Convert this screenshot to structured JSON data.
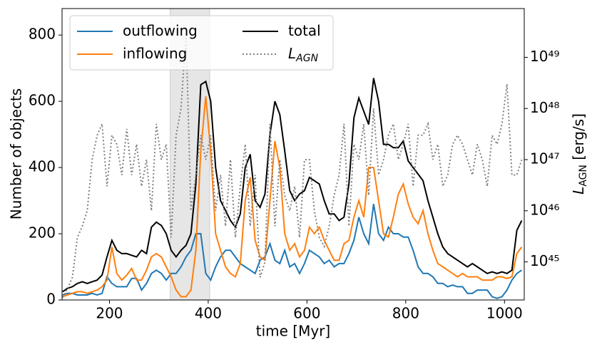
{
  "chart_data": {
    "type": "line",
    "xlabel": "time [Myr]",
    "ylabel": "Number of objects",
    "y2label": [
      "L",
      "AGN",
      " [erg/s]"
    ],
    "x": [
      105,
      115,
      125,
      135,
      145,
      155,
      165,
      175,
      185,
      195,
      205,
      215,
      225,
      235,
      245,
      255,
      265,
      275,
      285,
      295,
      305,
      315,
      325,
      335,
      345,
      355,
      365,
      375,
      385,
      395,
      405,
      415,
      425,
      435,
      445,
      455,
      465,
      475,
      485,
      495,
      505,
      515,
      525,
      535,
      545,
      555,
      565,
      575,
      585,
      595,
      605,
      615,
      625,
      635,
      645,
      655,
      665,
      675,
      685,
      695,
      705,
      715,
      725,
      735,
      745,
      755,
      765,
      775,
      785,
      795,
      805,
      815,
      825,
      835,
      845,
      855,
      865,
      875,
      885,
      895,
      905,
      915,
      925,
      935,
      945,
      955,
      965,
      975,
      985,
      995,
      1005,
      1015,
      1025,
      1035
    ],
    "xlim": [
      104,
      1040
    ],
    "xticks": [
      200,
      400,
      600,
      800,
      1000
    ],
    "ylim": [
      0,
      880
    ],
    "yticks": [
      0,
      200,
      400,
      600,
      800
    ],
    "y2lim": [
      1.8e+44,
      9e+49
    ],
    "y2log": true,
    "y2ticks": [
      {
        "value": 1e+45,
        "label": "10⁴⁵"
      },
      {
        "value": 1e+46,
        "label": "10⁴⁶"
      },
      {
        "value": 1e+47,
        "label": "10⁴⁷"
      },
      {
        "value": 1e+48,
        "label": "10⁴⁸"
      },
      {
        "value": 1e+49,
        "label": "10⁴⁹"
      }
    ],
    "shaded_span": [
      323,
      403
    ],
    "legend": "upper left",
    "series": [
      {
        "name": "outflowing",
        "color": "#1f77b4",
        "linestyle": "solid",
        "values": [
          15,
          20,
          20,
          15,
          15,
          15,
          20,
          15,
          20,
          70,
          50,
          40,
          40,
          40,
          65,
          65,
          30,
          50,
          80,
          90,
          80,
          60,
          80,
          80,
          100,
          130,
          150,
          200,
          200,
          80,
          60,
          100,
          130,
          150,
          150,
          130,
          110,
          100,
          90,
          80,
          120,
          130,
          170,
          120,
          110,
          150,
          100,
          110,
          80,
          110,
          150,
          140,
          130,
          110,
          120,
          100,
          110,
          110,
          140,
          180,
          250,
          200,
          170,
          290,
          200,
          180,
          220,
          200,
          200,
          190,
          190,
          150,
          100,
          80,
          80,
          70,
          50,
          50,
          40,
          45,
          40,
          40,
          20,
          20,
          30,
          30,
          30,
          10,
          5,
          10,
          30,
          60,
          80,
          90
        ]
      },
      {
        "name": "inflowing",
        "color": "#ff7f0e",
        "linestyle": "solid",
        "values": [
          10,
          15,
          20,
          25,
          25,
          20,
          25,
          30,
          40,
          60,
          160,
          80,
          60,
          75,
          95,
          60,
          60,
          90,
          130,
          140,
          130,
          100,
          70,
          30,
          10,
          10,
          30,
          150,
          450,
          615,
          450,
          200,
          150,
          100,
          80,
          70,
          110,
          300,
          370,
          180,
          130,
          120,
          300,
          480,
          400,
          200,
          150,
          170,
          130,
          150,
          220,
          200,
          220,
          180,
          150,
          120,
          120,
          170,
          180,
          250,
          300,
          250,
          400,
          400,
          300,
          200,
          190,
          250,
          320,
          350,
          290,
          250,
          230,
          270,
          200,
          150,
          110,
          100,
          90,
          80,
          70,
          80,
          70,
          70,
          70,
          60,
          60,
          60,
          70,
          70,
          65,
          70,
          140,
          160
        ]
      },
      {
        "name": "total",
        "color": "#000000",
        "linestyle": "solid",
        "values": [
          25,
          35,
          40,
          50,
          55,
          50,
          55,
          60,
          75,
          130,
          180,
          150,
          140,
          140,
          135,
          130,
          150,
          140,
          220,
          235,
          225,
          200,
          150,
          130,
          150,
          165,
          200,
          350,
          650,
          660,
          600,
          400,
          300,
          270,
          240,
          220,
          260,
          400,
          440,
          300,
          280,
          320,
          500,
          600,
          560,
          450,
          330,
          300,
          320,
          330,
          370,
          360,
          350,
          300,
          260,
          260,
          240,
          250,
          350,
          550,
          610,
          570,
          530,
          670,
          600,
          470,
          470,
          460,
          460,
          480,
          420,
          400,
          380,
          360,
          300,
          250,
          200,
          160,
          140,
          130,
          120,
          110,
          100,
          110,
          100,
          90,
          80,
          85,
          80,
          85,
          80,
          90,
          210,
          240
        ]
      },
      {
        "name": "L",
        "name_sub": "AGN",
        "color": "#808080",
        "linestyle": "dotted",
        "axis": "y2",
        "values": [
          2e+44,
          3e+44,
          5e+44,
          3e+45,
          5e+45,
          1e+46,
          1e+47,
          3e+47,
          5e+47,
          3e+46,
          3e+47,
          2e+47,
          5e+46,
          4e+47,
          5e+46,
          2e+47,
          3e+46,
          1e+47,
          1e+46,
          5e+47,
          1e+47,
          2e+47,
          3e+45,
          3e+47,
          1e+48,
          3e+49,
          1e+46,
          5e+46,
          3e+47,
          1e+47,
          3e+47,
          1e+46,
          5e+46,
          5e+45,
          1e+47,
          3e+45,
          3e+46,
          2e+47,
          5e+45,
          5e+46,
          5e+44,
          1e+45,
          5e+47,
          5e+45,
          1e+47,
          2e+46,
          1e+46,
          3e+46,
          3e+45,
          1e+47,
          1e+47,
          1e+46,
          3e+45,
          2e+45,
          5e+45,
          2e+46,
          5e+46,
          5e+47,
          5e+45,
          2e+47,
          1e+47,
          5e+47,
          2e+46,
          1e+48,
          5e+46,
          1e+47,
          3e+47,
          5e+47,
          1e+47,
          2e+47,
          5e+47,
          3e+46,
          3e+47,
          3e+47,
          5e+47,
          1e+47,
          2e+47,
          3e+46,
          5e+46,
          2e+47,
          3e+47,
          2e+47,
          1e+47,
          5e+46,
          2e+47,
          1e+47,
          3e+46,
          3e+47,
          2e+47,
          5e+47,
          3e+48,
          5e+46,
          5e+46,
          1e+47
        ]
      }
    ]
  }
}
